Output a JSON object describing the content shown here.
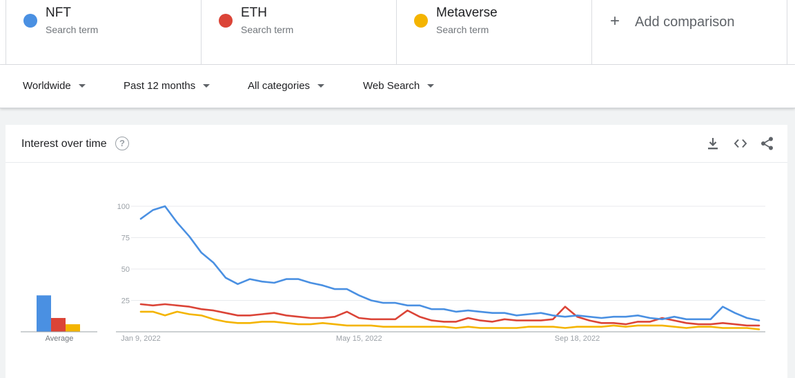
{
  "terms": [
    {
      "name": "NFT",
      "sub": "Search term",
      "color": "#4a90e2"
    },
    {
      "name": "ETH",
      "sub": "Search term",
      "color": "#db4437"
    },
    {
      "name": "Metaverse",
      "sub": "Search term",
      "color": "#f4b400"
    }
  ],
  "add_comparison": {
    "label": "Add comparison",
    "icon": "+"
  },
  "filters": {
    "region": "Worldwide",
    "period": "Past 12 months",
    "category": "All categories",
    "search_type": "Web Search"
  },
  "card": {
    "title": "Interest over time",
    "help_icon": "?",
    "tools": [
      "download-icon",
      "embed-icon",
      "share-icon"
    ]
  },
  "chart_data": {
    "type": "line",
    "title": "Interest over time",
    "ylim": [
      0,
      100
    ],
    "y_ticks": [
      25,
      50,
      75,
      100
    ],
    "x_tick_labels": [
      {
        "label": "Jan 9, 2022",
        "index": 0
      },
      {
        "label": "May 15, 2022",
        "index": 18
      },
      {
        "label": "Sep 18, 2022",
        "index": 36
      }
    ],
    "grid": true,
    "average_label": "Average",
    "averages": [
      29,
      11,
      6
    ],
    "series": [
      {
        "name": "NFT",
        "color": "#4a90e2",
        "values": [
          90,
          97,
          100,
          87,
          76,
          63,
          55,
          43,
          38,
          42,
          40,
          39,
          42,
          42,
          39,
          37,
          34,
          34,
          29,
          25,
          23,
          23,
          21,
          21,
          18,
          18,
          16,
          17,
          16,
          15,
          15,
          13,
          14,
          15,
          13,
          12,
          13,
          12,
          11,
          12,
          12,
          13,
          11,
          10,
          12,
          10,
          10,
          10,
          20,
          15,
          11,
          9
        ]
      },
      {
        "name": "ETH",
        "color": "#db4437",
        "values": [
          22,
          21,
          22,
          21,
          20,
          18,
          17,
          15,
          13,
          13,
          14,
          15,
          13,
          12,
          11,
          11,
          12,
          16,
          11,
          10,
          10,
          10,
          17,
          12,
          9,
          8,
          8,
          11,
          9,
          8,
          10,
          9,
          9,
          9,
          10,
          20,
          12,
          9,
          7,
          7,
          6,
          8,
          8,
          11,
          9,
          7,
          6,
          6,
          7,
          6,
          5,
          5
        ]
      },
      {
        "name": "Metaverse",
        "color": "#f4b400",
        "values": [
          16,
          16,
          13,
          16,
          14,
          13,
          10,
          8,
          7,
          7,
          8,
          8,
          7,
          6,
          6,
          7,
          6,
          5,
          5,
          5,
          4,
          4,
          4,
          4,
          4,
          4,
          3,
          4,
          3,
          3,
          3,
          3,
          4,
          4,
          4,
          3,
          4,
          4,
          4,
          5,
          4,
          5,
          5,
          5,
          4,
          3,
          4,
          4,
          3,
          3,
          3,
          2
        ]
      }
    ]
  }
}
